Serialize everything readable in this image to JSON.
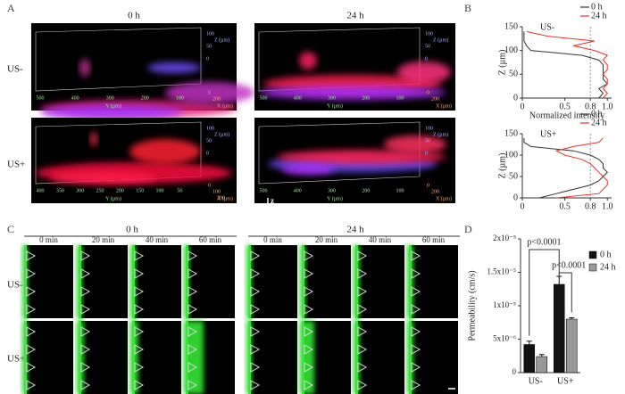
{
  "panel_labels": [
    "A",
    "B",
    "C",
    "D"
  ],
  "panel_A": {
    "columns": [
      "0 h",
      "24 h"
    ],
    "rows": [
      "US-",
      "US+"
    ],
    "z_label": "Z (µm)",
    "y_label": "Y (µm)",
    "x_label": "X (µm)",
    "axis_icon": [
      "z",
      "x",
      "y"
    ],
    "images": [
      {
        "z_ticks": [
          100,
          50,
          0
        ],
        "y_ticks": [
          500,
          400,
          300,
          200,
          100
        ],
        "x_ticks": [
          0,
          200
        ]
      },
      {
        "z_ticks": [
          100,
          50,
          0
        ],
        "y_ticks": [
          500,
          400,
          300,
          200,
          100
        ],
        "x_ticks": [
          0,
          200
        ]
      },
      {
        "z_ticks": [
          100,
          50,
          0
        ],
        "y_ticks": [
          400,
          350,
          300,
          250,
          200,
          150,
          100,
          50
        ],
        "x_ticks": [
          0,
          100,
          200
        ]
      },
      {
        "z_ticks": [
          100,
          50,
          0
        ],
        "y_ticks": [
          500,
          400,
          300,
          200,
          100
        ],
        "x_ticks": [
          0,
          200
        ]
      }
    ]
  },
  "panel_C": {
    "header_groups": [
      "0 h",
      "24 h"
    ],
    "timepoints": [
      "0 min",
      "20 min",
      "40 min",
      "60 min"
    ],
    "rows": [
      "US-",
      "US+"
    ]
  },
  "chart_data": [
    {
      "type": "line",
      "inset_label": "US-",
      "y_label": "Z (µm)",
      "x_label": "Normalized intensity",
      "y": [
        0,
        10,
        20,
        30,
        40,
        50,
        60,
        70,
        80,
        90,
        100,
        110,
        120,
        130,
        140
      ],
      "series": [
        {
          "name": "0 h",
          "color": "#333333",
          "values": [
            0.9,
            0.95,
            0.9,
            1.0,
            0.95,
            0.95,
            0.95,
            0.95,
            0.9,
            0.7,
            0.1,
            0.05,
            0.02,
            0.02,
            0.02
          ]
        },
        {
          "name": "24 h",
          "color": "#e8322c",
          "values": [
            0.95,
            1.0,
            0.95,
            1.0,
            1.0,
            0.95,
            1.0,
            1.0,
            0.95,
            1.0,
            0.85,
            0.6,
            0.85,
            0.3,
            0.05
          ]
        }
      ],
      "xlim": [
        0,
        1.05
      ],
      "xticks": [
        0,
        0.5,
        0.8,
        {
          "value": 1,
          "label": "1.0"
        }
      ],
      "ylim": [
        0,
        150
      ],
      "yticks": [
        0,
        50,
        100,
        150
      ],
      "reference_line": 0.8
    },
    {
      "type": "line",
      "inset_label": "US+",
      "y_label": "Z (µm)",
      "y": [
        0,
        10,
        20,
        30,
        40,
        50,
        60,
        70,
        80,
        90,
        100,
        110,
        120,
        130,
        140
      ],
      "series": [
        {
          "name": "0 h",
          "color": "#333333",
          "values": [
            0.2,
            0.4,
            0.6,
            0.8,
            0.9,
            0.95,
            1.0,
            0.95,
            0.95,
            0.9,
            0.8,
            0.6,
            0.1,
            0.02,
            0.02
          ]
        },
        {
          "name": "24 h",
          "color": "#e8322c",
          "values": [
            0.4,
            0.9,
            0.95,
            1.0,
            1.0,
            0.95,
            0.9,
            0.85,
            0.8,
            0.7,
            0.5,
            0.4,
            0.6,
            0.9,
            0.95
          ]
        }
      ],
      "xlim": [
        0,
        1.05
      ],
      "xticks": [
        0,
        0.5,
        0.8,
        {
          "value": 1,
          "label": "1.0"
        }
      ],
      "ylim": [
        0,
        150
      ],
      "yticks": [
        0,
        50,
        100,
        150
      ],
      "reference_line": 0.8
    },
    {
      "type": "bar",
      "y_label": "Permeability (cm/s)",
      "categories": [
        "US-",
        "US+"
      ],
      "series": [
        {
          "name": "0 h",
          "color": "#111111",
          "values": [
            4.2e-06,
            1.32e-05
          ],
          "errors": [
            5e-07,
            1.2e-06
          ]
        },
        {
          "name": "24 h",
          "color": "#999999",
          "values": [
            2.4e-06,
            8e-06
          ],
          "errors": [
            3e-07,
            2e-07
          ]
        }
      ],
      "ylim": [
        0,
        2e-05
      ],
      "yticks": [
        0,
        {
          "value": 5e-06,
          "label": "5x10⁻⁶"
        },
        {
          "value": 1e-05,
          "label": "1x10⁻⁵"
        },
        {
          "value": 1.5e-05,
          "label": "1.5x10⁻⁵"
        },
        {
          "value": 2e-05,
          "label": "2x10⁻⁵"
        }
      ],
      "annotations": [
        "p<0.0001",
        "p<0.0001"
      ]
    }
  ]
}
